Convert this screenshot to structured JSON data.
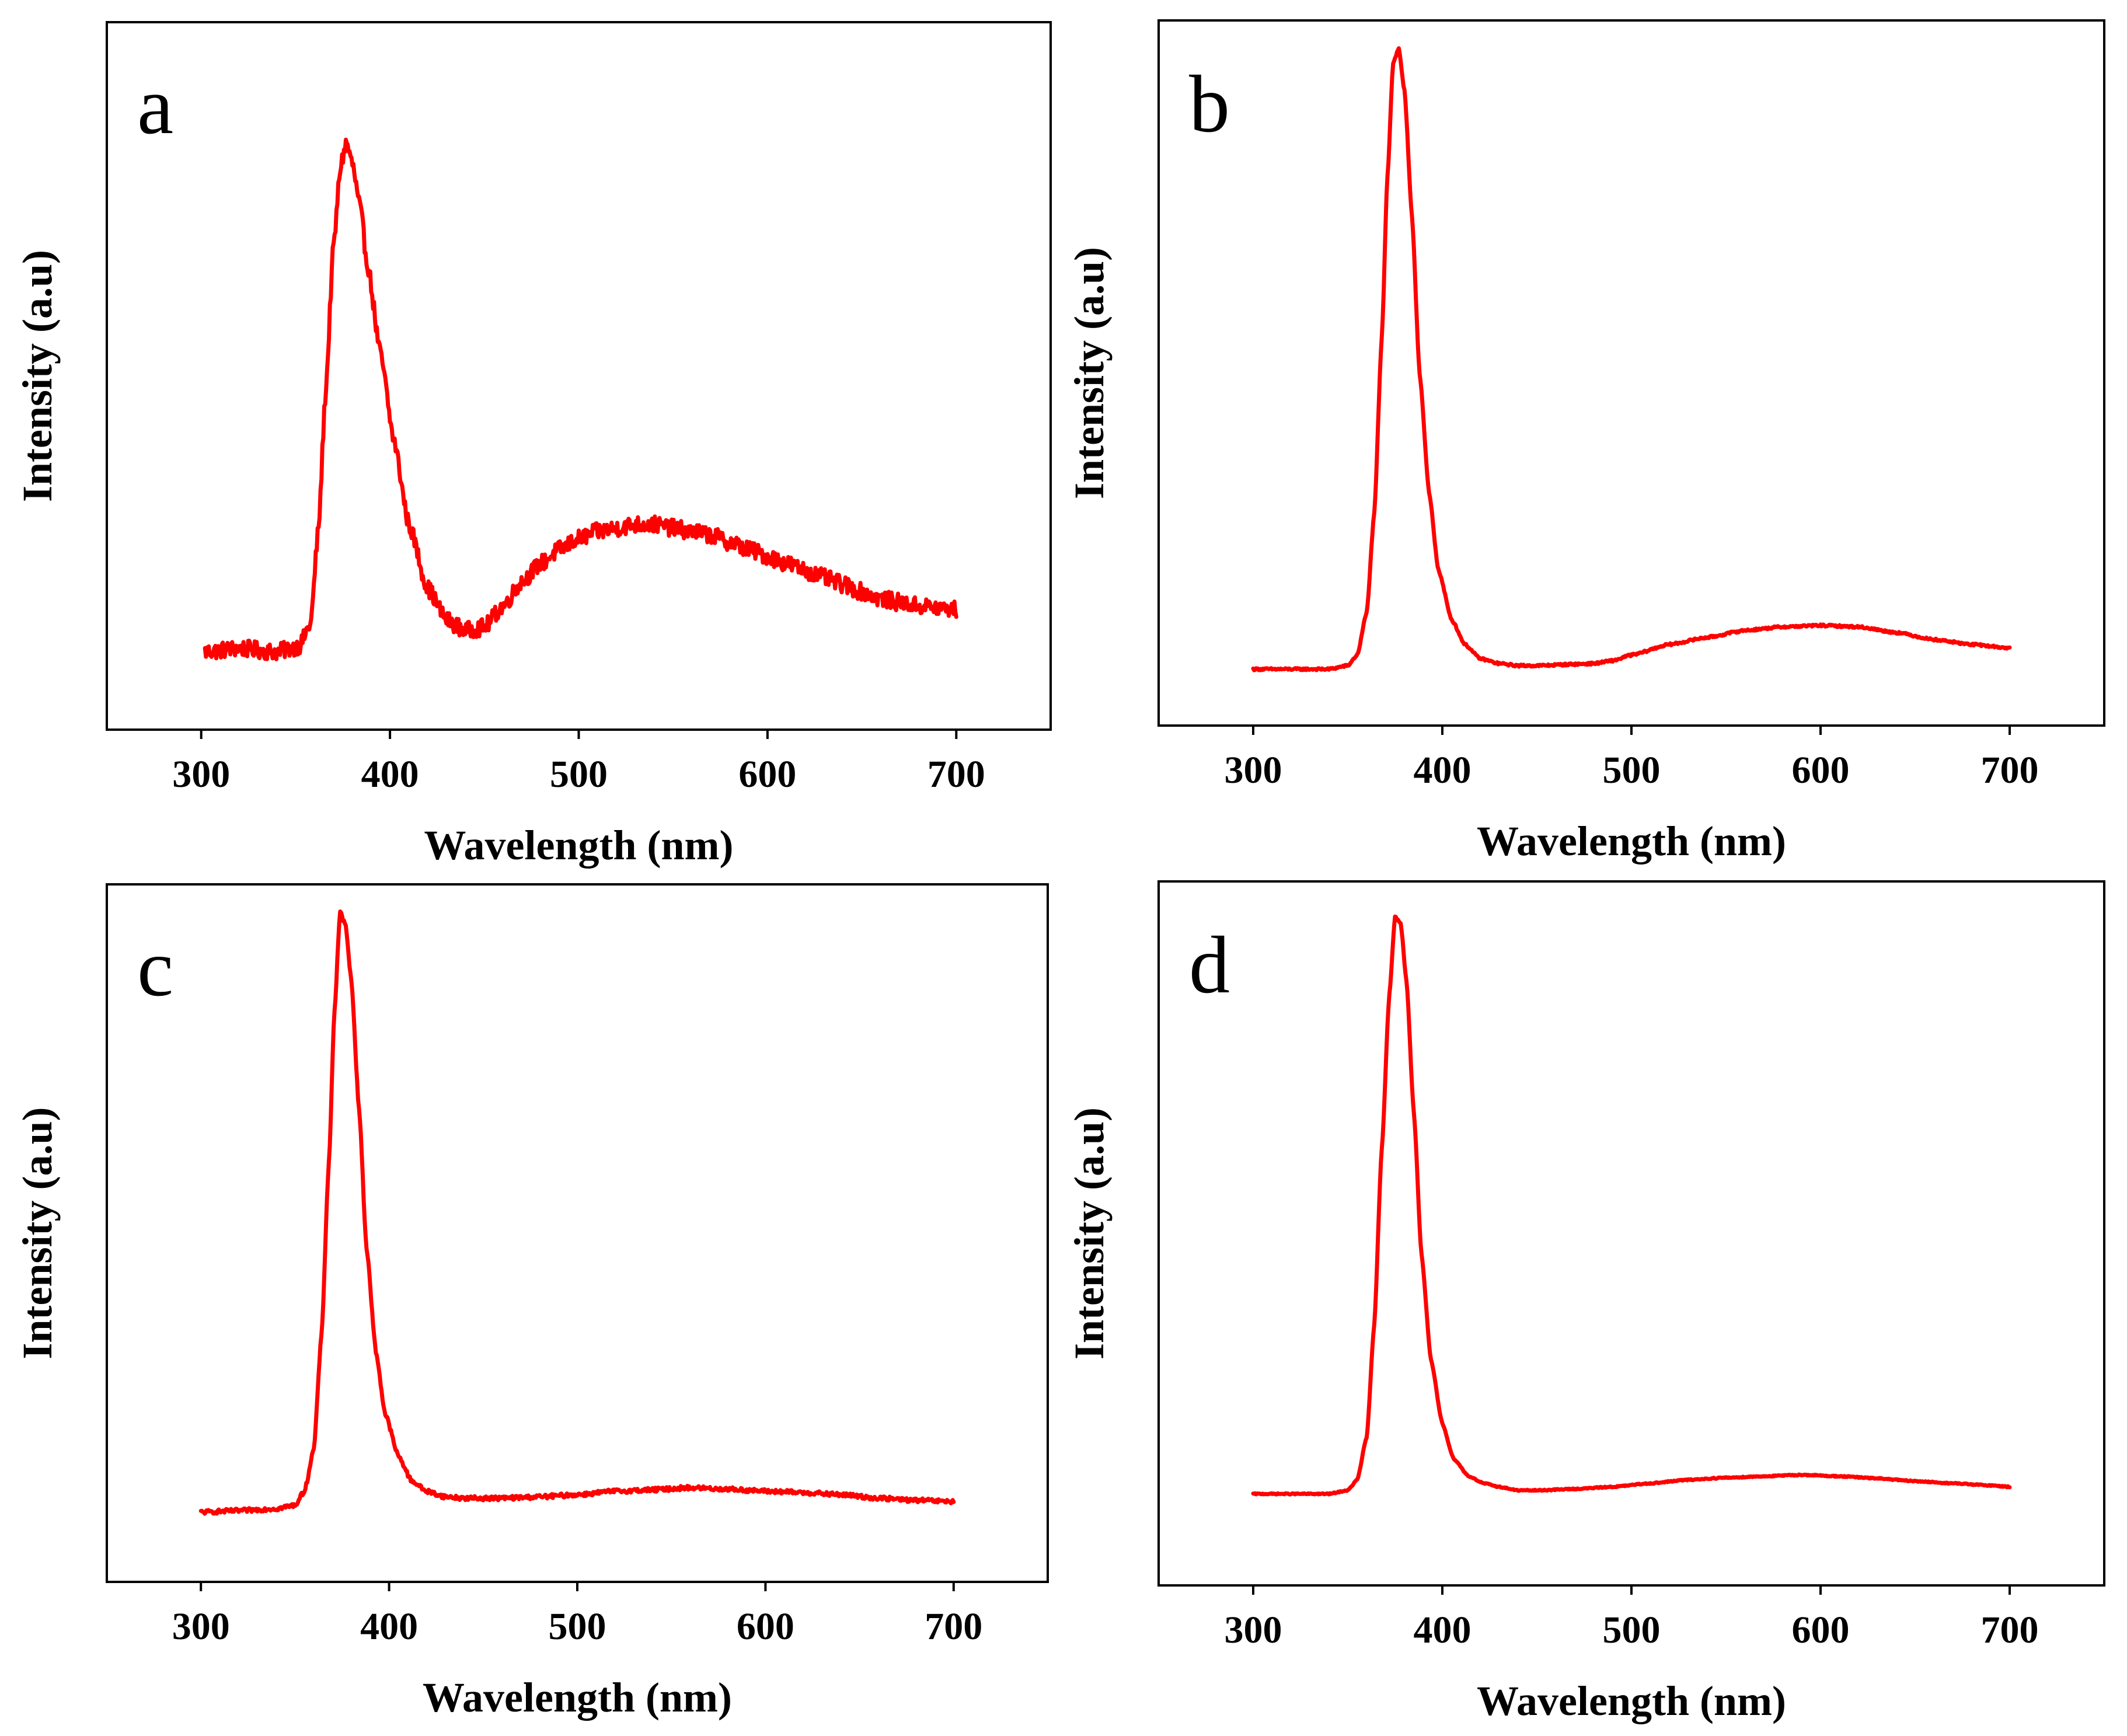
{
  "chart_data": [
    {
      "panel": "a",
      "type": "line",
      "xlabel": "Wavelength (nm)",
      "ylabel": "Intensity (a.u)",
      "xlim": [
        250,
        750
      ],
      "ylim": [
        0,
        1
      ],
      "xticks": [
        300,
        400,
        500,
        600,
        700
      ],
      "color": "#ff0000",
      "noise": 0.012,
      "series": [
        {
          "name": "a",
          "x": [
            302,
            320,
            340,
            352,
            358,
            362,
            366,
            370,
            374,
            377,
            380,
            384,
            388,
            395,
            402,
            410,
            420,
            430,
            440,
            450,
            460,
            470,
            480,
            490,
            500,
            510,
            520,
            530,
            540,
            550,
            560,
            570,
            580,
            590,
            600,
            610,
            620,
            630,
            640,
            650,
            660,
            670,
            680,
            690,
            700
          ],
          "y": [
            0.11,
            0.115,
            0.11,
            0.118,
            0.15,
            0.28,
            0.48,
            0.68,
            0.8,
            0.83,
            0.8,
            0.74,
            0.66,
            0.53,
            0.41,
            0.29,
            0.2,
            0.155,
            0.14,
            0.145,
            0.175,
            0.21,
            0.235,
            0.255,
            0.27,
            0.28,
            0.285,
            0.29,
            0.29,
            0.285,
            0.28,
            0.275,
            0.265,
            0.255,
            0.245,
            0.235,
            0.225,
            0.215,
            0.205,
            0.195,
            0.185,
            0.18,
            0.175,
            0.172,
            0.17
          ]
        }
      ]
    },
    {
      "panel": "b",
      "type": "line",
      "xlabel": "Wavelength (nm)",
      "ylabel": "Intensity (a.u)",
      "xlim": [
        250,
        750
      ],
      "ylim": [
        0,
        1
      ],
      "xticks": [
        300,
        400,
        500,
        600,
        700
      ],
      "color": "#ff0000",
      "noise": 0.0015,
      "series": [
        {
          "name": "b",
          "x": [
            300,
            320,
            340,
            350,
            355,
            360,
            364,
            368,
            371,
            374,
            377,
            380,
            384,
            388,
            393,
            398,
            405,
            412,
            420,
            430,
            440,
            450,
            470,
            480,
            490,
            500,
            520,
            540,
            560,
            580,
            600,
            620,
            640,
            660,
            680,
            700
          ],
          "y": [
            0.08,
            0.08,
            0.08,
            0.085,
            0.1,
            0.16,
            0.3,
            0.55,
            0.78,
            0.94,
            0.96,
            0.9,
            0.72,
            0.5,
            0.33,
            0.22,
            0.15,
            0.115,
            0.095,
            0.088,
            0.085,
            0.085,
            0.087,
            0.088,
            0.092,
            0.1,
            0.115,
            0.125,
            0.135,
            0.14,
            0.142,
            0.14,
            0.132,
            0.122,
            0.115,
            0.11
          ]
        }
      ]
    },
    {
      "panel": "c",
      "type": "line",
      "xlabel": "Wavelength (nm)",
      "ylabel": "Intensity (a.u)",
      "xlim": [
        250,
        750
      ],
      "ylim": [
        0,
        1
      ],
      "xticks": [
        300,
        400,
        500,
        600,
        700
      ],
      "color": "#ff0000",
      "noise": 0.003,
      "series": [
        {
          "name": "c",
          "x": [
            300,
            320,
            340,
            350,
            355,
            360,
            364,
            368,
            371,
            374,
            377,
            380,
            384,
            388,
            393,
            398,
            405,
            412,
            420,
            430,
            440,
            460,
            480,
            500,
            520,
            540,
            560,
            580,
            600,
            620,
            640,
            660,
            680,
            700
          ],
          "y": [
            0.1,
            0.102,
            0.105,
            0.11,
            0.13,
            0.19,
            0.35,
            0.6,
            0.82,
            0.96,
            0.94,
            0.86,
            0.68,
            0.48,
            0.33,
            0.24,
            0.18,
            0.145,
            0.13,
            0.122,
            0.12,
            0.12,
            0.122,
            0.125,
            0.13,
            0.132,
            0.135,
            0.133,
            0.13,
            0.128,
            0.125,
            0.12,
            0.117,
            0.115
          ]
        }
      ]
    },
    {
      "panel": "d",
      "type": "line",
      "xlabel": "Wavelength (nm)",
      "ylabel": "Intensity (a.u)",
      "xlim": [
        250,
        750
      ],
      "ylim": [
        0,
        1
      ],
      "xticks": [
        300,
        400,
        500,
        600,
        700
      ],
      "color": "#ff0000",
      "noise": 0.0008,
      "series": [
        {
          "name": "d",
          "x": [
            300,
            320,
            340,
            350,
            355,
            360,
            364,
            368,
            372,
            375,
            378,
            381,
            385,
            389,
            394,
            400,
            406,
            414,
            422,
            430,
            440,
            450,
            470,
            490,
            510,
            530,
            550,
            570,
            590,
            610,
            630,
            650,
            670,
            690,
            700
          ],
          "y": [
            0.13,
            0.13,
            0.13,
            0.135,
            0.15,
            0.21,
            0.37,
            0.62,
            0.84,
            0.95,
            0.94,
            0.86,
            0.67,
            0.47,
            0.32,
            0.23,
            0.18,
            0.155,
            0.145,
            0.14,
            0.135,
            0.135,
            0.137,
            0.14,
            0.145,
            0.15,
            0.153,
            0.155,
            0.157,
            0.155,
            0.152,
            0.148,
            0.145,
            0.142,
            0.14
          ]
        }
      ]
    }
  ]
}
